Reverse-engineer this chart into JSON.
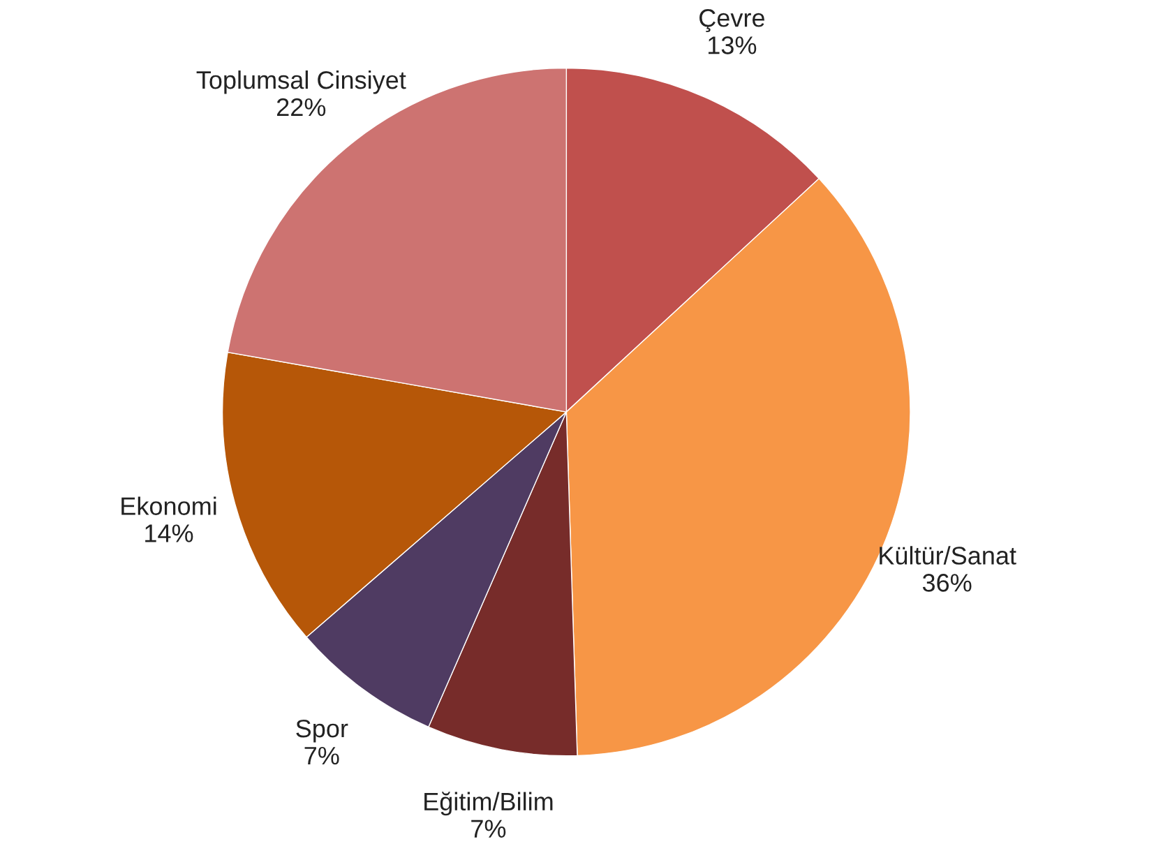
{
  "chart_data": {
    "type": "pie",
    "categories": [
      "Çevre",
      "Kültür/Sanat",
      "Eğitim/Bilim",
      "Spor",
      "Ekonomi",
      "Toplumsal Cinsiyet"
    ],
    "values": [
      13,
      36,
      7,
      7,
      14,
      22
    ],
    "value_labels": [
      "13%",
      "36%",
      "7%",
      "7%",
      "14%",
      "22%"
    ],
    "colors": [
      "#c0504d",
      "#f79646",
      "#772c2a",
      "#4f3b62",
      "#b65708",
      "#cd7371"
    ],
    "legend": false
  }
}
